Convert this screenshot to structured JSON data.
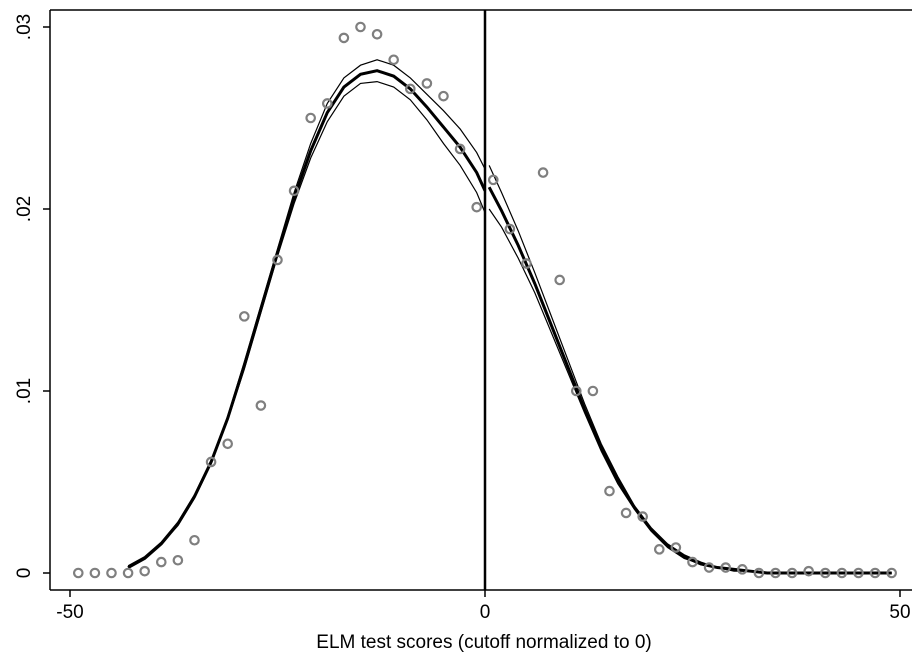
{
  "chart_data": {
    "type": "scatter",
    "title": "",
    "xlabel": "ELM test scores (cutoff normalized to 0)",
    "ylabel": "",
    "xlim": [
      -50,
      50
    ],
    "ylim": [
      0,
      0.03
    ],
    "x_ticks": [
      {
        "value": -50,
        "label": "-50"
      },
      {
        "value": 0,
        "label": "0"
      },
      {
        "value": 50,
        "label": "50"
      }
    ],
    "y_ticks": [
      {
        "value": 0,
        "label": "0"
      },
      {
        "value": 0.01,
        "label": ".01"
      },
      {
        "value": 0.02,
        "label": ".02"
      },
      {
        "value": 0.03,
        "label": ".03"
      }
    ],
    "grid": false,
    "legend": "none",
    "cutoff": 0,
    "colors": {
      "points": "#7f7f7f",
      "fit": "#000000",
      "cutoff_line": "#000000"
    },
    "points": [
      {
        "x": -49,
        "y": 0.0
      },
      {
        "x": -47,
        "y": 0.0
      },
      {
        "x": -45,
        "y": 0.0
      },
      {
        "x": -43,
        "y": 0.0
      },
      {
        "x": -41,
        "y": 0.0001
      },
      {
        "x": -39,
        "y": 0.0006
      },
      {
        "x": -37,
        "y": 0.0007
      },
      {
        "x": -35,
        "y": 0.0018
      },
      {
        "x": -33,
        "y": 0.0061
      },
      {
        "x": -31,
        "y": 0.0071
      },
      {
        "x": -29,
        "y": 0.0141
      },
      {
        "x": -27,
        "y": 0.0092
      },
      {
        "x": -25,
        "y": 0.0172
      },
      {
        "x": -23,
        "y": 0.021
      },
      {
        "x": -21,
        "y": 0.025
      },
      {
        "x": -19,
        "y": 0.0258
      },
      {
        "x": -17,
        "y": 0.0294
      },
      {
        "x": -15,
        "y": 0.03
      },
      {
        "x": -13,
        "y": 0.0296
      },
      {
        "x": -11,
        "y": 0.0282
      },
      {
        "x": -9,
        "y": 0.0266
      },
      {
        "x": -7,
        "y": 0.0269
      },
      {
        "x": -5,
        "y": 0.0262
      },
      {
        "x": -3,
        "y": 0.0233
      },
      {
        "x": -1,
        "y": 0.0201
      },
      {
        "x": 1,
        "y": 0.0216
      },
      {
        "x": 3,
        "y": 0.0189
      },
      {
        "x": 5,
        "y": 0.017
      },
      {
        "x": 7,
        "y": 0.022
      },
      {
        "x": 9,
        "y": 0.0161
      },
      {
        "x": 11,
        "y": 0.01
      },
      {
        "x": 13,
        "y": 0.01
      },
      {
        "x": 15,
        "y": 0.0045
      },
      {
        "x": 17,
        "y": 0.0033
      },
      {
        "x": 19,
        "y": 0.0031
      },
      {
        "x": 21,
        "y": 0.0013
      },
      {
        "x": 23,
        "y": 0.0014
      },
      {
        "x": 25,
        "y": 0.0006
      },
      {
        "x": 27,
        "y": 0.0003
      },
      {
        "x": 29,
        "y": 0.0003
      },
      {
        "x": 31,
        "y": 0.0002
      },
      {
        "x": 33,
        "y": 0.0
      },
      {
        "x": 35,
        "y": 0.0
      },
      {
        "x": 37,
        "y": 0.0
      },
      {
        "x": 39,
        "y": 0.0001
      },
      {
        "x": 41,
        "y": 0.0
      },
      {
        "x": 43,
        "y": 0.0
      },
      {
        "x": 45,
        "y": 0.0
      },
      {
        "x": 47,
        "y": 0.0
      },
      {
        "x": 49,
        "y": 0.0
      }
    ],
    "fit_segments": [
      {
        "side": "left",
        "x": [
          -43,
          -41,
          -39,
          -37,
          -35,
          -33,
          -31,
          -29,
          -27,
          -25,
          -23,
          -21,
          -19,
          -17,
          -15,
          -13,
          -11,
          -9,
          -7,
          -5,
          -3,
          -1,
          0
        ],
        "y": [
          0.0003,
          0.0008,
          0.0016,
          0.0027,
          0.0042,
          0.0061,
          0.0085,
          0.0114,
          0.0145,
          0.0176,
          0.0206,
          0.0232,
          0.0253,
          0.0267,
          0.0274,
          0.0276,
          0.0273,
          0.0266,
          0.0256,
          0.0245,
          0.0234,
          0.022,
          0.021
        ],
        "lo": [
          0.0003,
          0.0008,
          0.0016,
          0.0026,
          0.0041,
          0.006,
          0.0084,
          0.0112,
          0.0143,
          0.0174,
          0.0203,
          0.0228,
          0.0248,
          0.0262,
          0.0269,
          0.027,
          0.0267,
          0.026,
          0.0249,
          0.0236,
          0.0224,
          0.0209,
          0.0198
        ],
        "hi": [
          0.0004,
          0.0009,
          0.0017,
          0.0028,
          0.0043,
          0.0062,
          0.0086,
          0.0116,
          0.0147,
          0.0178,
          0.0209,
          0.0236,
          0.0258,
          0.0272,
          0.0279,
          0.0282,
          0.0279,
          0.0272,
          0.0263,
          0.0254,
          0.0244,
          0.0231,
          0.0222
        ]
      },
      {
        "side": "right",
        "x": [
          0.5,
          2,
          4,
          6,
          8,
          10,
          12,
          14,
          16,
          18,
          20,
          22,
          24,
          26,
          28,
          30,
          32,
          34,
          36,
          38,
          40,
          42,
          44,
          46,
          48,
          49
        ],
        "y": [
          0.0212,
          0.0199,
          0.018,
          0.0159,
          0.0136,
          0.0113,
          0.009,
          0.0069,
          0.0051,
          0.0036,
          0.0024,
          0.0015,
          0.0009,
          0.0005,
          0.0003,
          0.0002,
          0.0001,
          0.0,
          0.0,
          0.0,
          0.0,
          0.0,
          0.0,
          0.0,
          0.0,
          0.0
        ],
        "lo": [
          0.02,
          0.019,
          0.0173,
          0.0154,
          0.0132,
          0.011,
          0.0088,
          0.0067,
          0.0049,
          0.0035,
          0.0023,
          0.0014,
          0.0008,
          0.0005,
          0.0003,
          0.0001,
          0.0001,
          0.0,
          0.0,
          0.0,
          0.0,
          0.0,
          0.0,
          0.0,
          0.0,
          0.0
        ],
        "hi": [
          0.0224,
          0.0209,
          0.0188,
          0.0165,
          0.0141,
          0.0117,
          0.0093,
          0.0071,
          0.0053,
          0.0037,
          0.0025,
          0.0016,
          0.001,
          0.0006,
          0.0003,
          0.0002,
          0.0001,
          0.0,
          0.0,
          0.0,
          0.0,
          0.0,
          0.0,
          0.0,
          0.0,
          0.0
        ]
      }
    ]
  }
}
